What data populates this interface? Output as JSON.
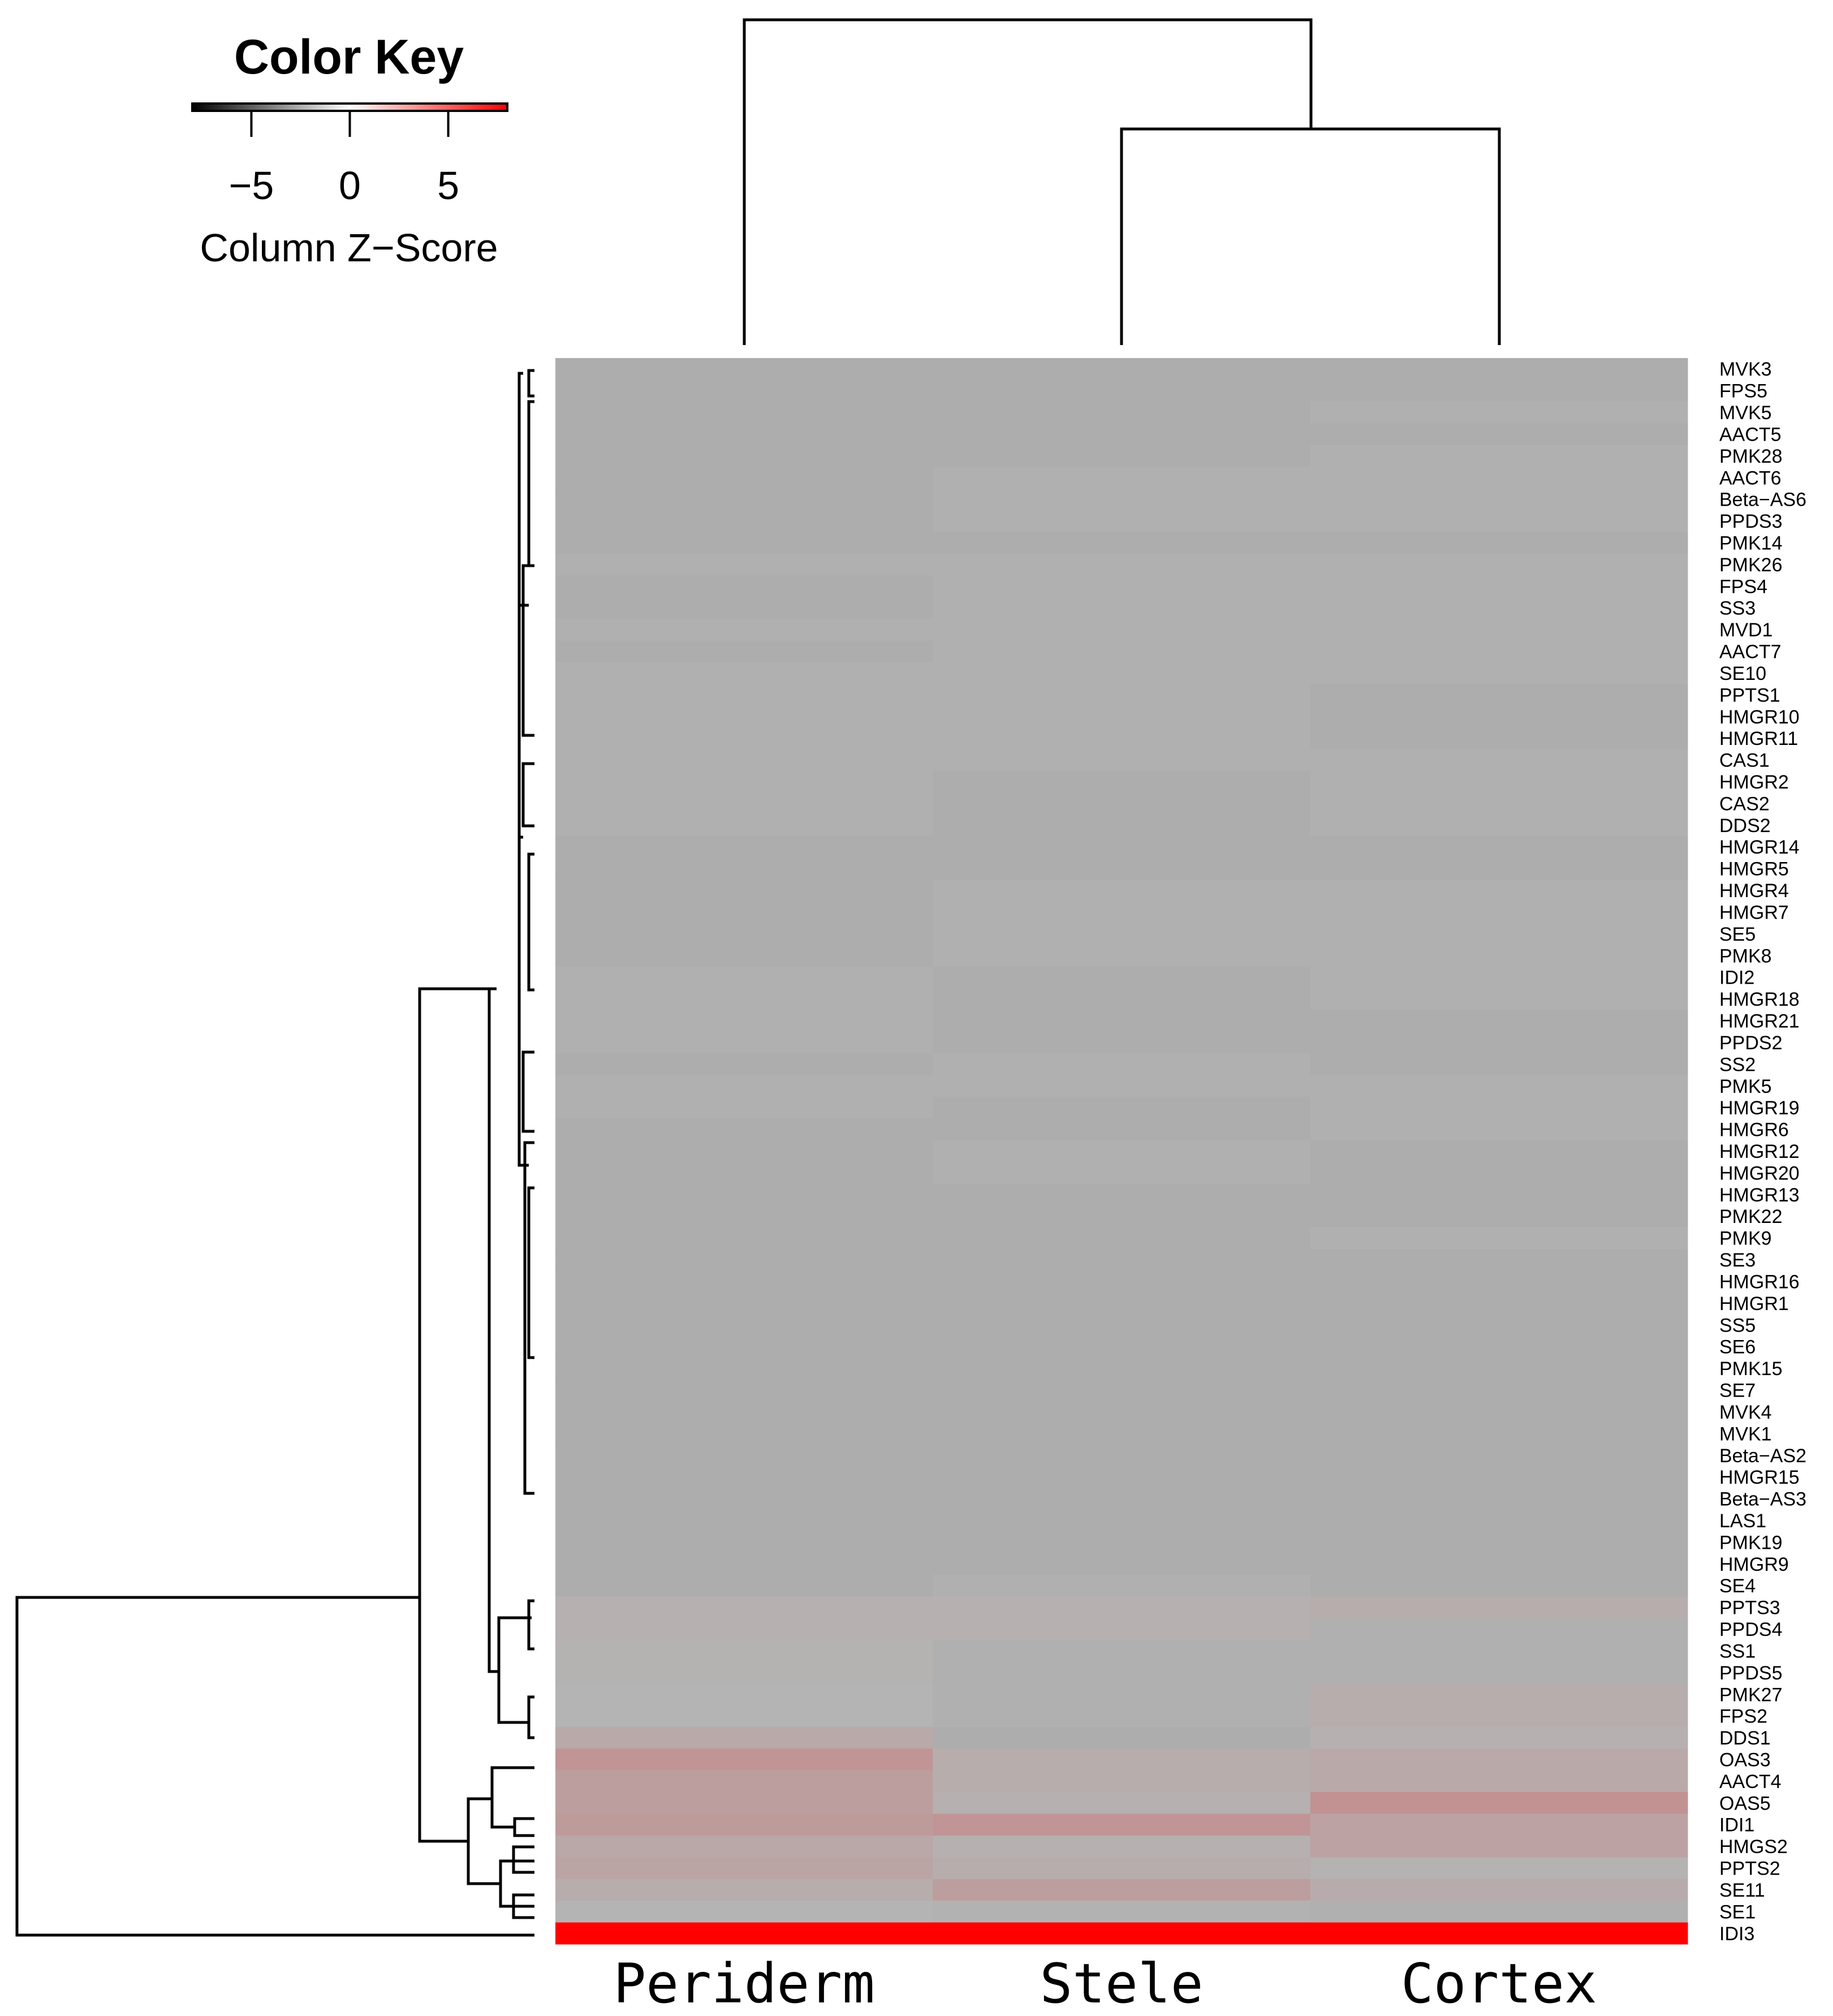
{
  "chart_data": {
    "type": "heatmap",
    "title": "",
    "xlabel": "",
    "ylabel": "",
    "columns": [
      "Periderm",
      "Stele",
      "Cortex"
    ],
    "rows": [
      "MVK3",
      "FPS5",
      "MVK5",
      "AACT5",
      "PMK28",
      "AACT6",
      "Beta−AS6",
      "PPDS3",
      "PMK14",
      "PMK26",
      "FPS4",
      "SS3",
      "MVD1",
      "AACT7",
      "SE10",
      "PPTS1",
      "HMGR10",
      "HMGR11",
      "CAS1",
      "HMGR2",
      "CAS2",
      "DDS2",
      "HMGR14",
      "HMGR5",
      "HMGR4",
      "HMGR7",
      "SE5",
      "PMK8",
      "IDI2",
      "HMGR18",
      "HMGR21",
      "PPDS2",
      "SS2",
      "PMK5",
      "HMGR19",
      "HMGR6",
      "HMGR12",
      "HMGR20",
      "HMGR13",
      "PMK22",
      "PMK9",
      "SE3",
      "HMGR16",
      "HMGR1",
      "SS5",
      "SE6",
      "PMK15",
      "SE7",
      "MVK4",
      "MVK1",
      "Beta−AS2",
      "HMGR15",
      "Beta−AS3",
      "LAS1",
      "PMK19",
      "HMGR9",
      "SE4",
      "PPTS3",
      "PPDS4",
      "SS1",
      "PPDS5",
      "PMK27",
      "FPS2",
      "DDS1",
      "OAS3",
      "AACT4",
      "OAS5",
      "IDI1",
      "HMGS2",
      "PPTS2",
      "SE11",
      "SE1",
      "IDI3"
    ],
    "values": [
      [
        -0.3,
        -0.3,
        -0.3
      ],
      [
        -0.3,
        -0.3,
        -0.3
      ],
      [
        -0.3,
        -0.3,
        -0.2
      ],
      [
        -0.3,
        -0.3,
        -0.3
      ],
      [
        -0.3,
        -0.3,
        -0.2
      ],
      [
        -0.3,
        -0.2,
        -0.2
      ],
      [
        -0.3,
        -0.2,
        -0.2
      ],
      [
        -0.3,
        -0.2,
        -0.2
      ],
      [
        -0.3,
        -0.3,
        -0.3
      ],
      [
        -0.2,
        -0.2,
        -0.2
      ],
      [
        -0.3,
        -0.2,
        -0.2
      ],
      [
        -0.3,
        -0.2,
        -0.2
      ],
      [
        -0.2,
        -0.2,
        -0.2
      ],
      [
        -0.3,
        -0.2,
        -0.2
      ],
      [
        -0.2,
        -0.2,
        -0.2
      ],
      [
        -0.2,
        -0.2,
        -0.3
      ],
      [
        -0.2,
        -0.2,
        -0.3
      ],
      [
        -0.2,
        -0.2,
        -0.3
      ],
      [
        -0.2,
        -0.2,
        -0.2
      ],
      [
        -0.2,
        -0.3,
        -0.2
      ],
      [
        -0.2,
        -0.3,
        -0.2
      ],
      [
        -0.2,
        -0.3,
        -0.2
      ],
      [
        -0.3,
        -0.3,
        -0.3
      ],
      [
        -0.3,
        -0.3,
        -0.3
      ],
      [
        -0.3,
        -0.2,
        -0.2
      ],
      [
        -0.3,
        -0.2,
        -0.2
      ],
      [
        -0.3,
        -0.2,
        -0.2
      ],
      [
        -0.3,
        -0.2,
        -0.2
      ],
      [
        -0.2,
        -0.3,
        -0.2
      ],
      [
        -0.2,
        -0.3,
        -0.2
      ],
      [
        -0.2,
        -0.3,
        -0.3
      ],
      [
        -0.2,
        -0.3,
        -0.3
      ],
      [
        -0.3,
        -0.2,
        -0.3
      ],
      [
        -0.2,
        -0.2,
        -0.2
      ],
      [
        -0.2,
        -0.3,
        -0.2
      ],
      [
        -0.3,
        -0.3,
        -0.2
      ],
      [
        -0.3,
        -0.2,
        -0.3
      ],
      [
        -0.3,
        -0.2,
        -0.3
      ],
      [
        -0.3,
        -0.3,
        -0.3
      ],
      [
        -0.3,
        -0.3,
        -0.3
      ],
      [
        -0.3,
        -0.3,
        -0.2
      ],
      [
        -0.3,
        -0.3,
        -0.3
      ],
      [
        -0.3,
        -0.3,
        -0.3
      ],
      [
        -0.3,
        -0.3,
        -0.3
      ],
      [
        -0.3,
        -0.3,
        -0.3
      ],
      [
        -0.3,
        -0.3,
        -0.3
      ],
      [
        -0.3,
        -0.3,
        -0.3
      ],
      [
        -0.3,
        -0.3,
        -0.3
      ],
      [
        -0.3,
        -0.3,
        -0.3
      ],
      [
        -0.3,
        -0.3,
        -0.3
      ],
      [
        -0.3,
        -0.3,
        -0.3
      ],
      [
        -0.3,
        -0.3,
        -0.3
      ],
      [
        -0.3,
        -0.3,
        -0.3
      ],
      [
        -0.3,
        -0.3,
        -0.3
      ],
      [
        -0.3,
        -0.3,
        -0.3
      ],
      [
        -0.3,
        -0.3,
        -0.3
      ],
      [
        -0.3,
        -0.2,
        -0.3
      ],
      [
        0.2,
        0.2,
        0.3
      ],
      [
        0.2,
        0.2,
        -0.2
      ],
      [
        0.1,
        -0.2,
        -0.2
      ],
      [
        0.1,
        -0.2,
        -0.2
      ],
      [
        0.0,
        -0.2,
        0.3
      ],
      [
        0.0,
        -0.2,
        0.3
      ],
      [
        0.5,
        -0.3,
        0.2
      ],
      [
        1.4,
        0.3,
        0.5
      ],
      [
        1.0,
        0.3,
        0.5
      ],
      [
        1.0,
        0.2,
        1.5
      ],
      [
        1.1,
        1.4,
        0.8
      ],
      [
        0.6,
        0.2,
        0.8
      ],
      [
        0.7,
        0.3,
        0.1
      ],
      [
        0.3,
        1.0,
        0.4
      ],
      [
        0.0,
        -0.1,
        -0.2
      ],
      [
        8.0,
        8.0,
        8.0
      ]
    ],
    "color_key": {
      "title": "Color Key",
      "label": "Column Z−Score",
      "range": [
        -8,
        8
      ],
      "ticks": [
        -5,
        0,
        5
      ],
      "tick_labels": [
        "−5",
        "0",
        "5"
      ],
      "colors": [
        "#000000",
        "#ffffff",
        "#ff0000"
      ]
    }
  }
}
